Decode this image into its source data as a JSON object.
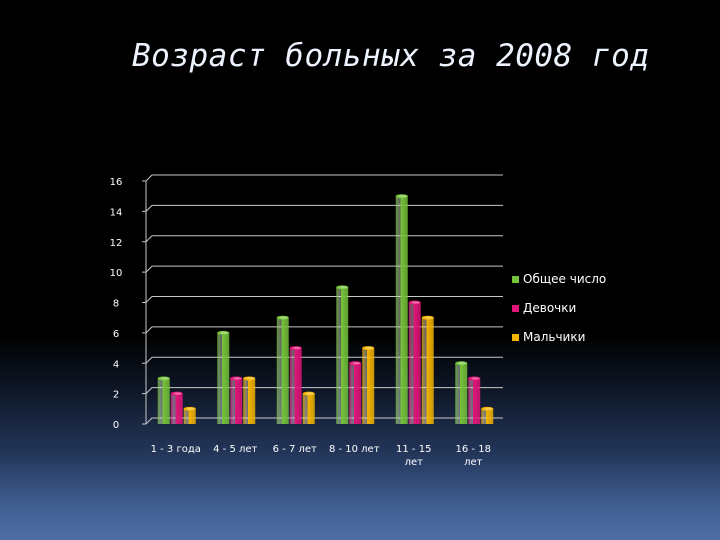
{
  "slide": {
    "title": "Возраст больных за 2008 год"
  },
  "chart_data": {
    "type": "bar",
    "title": "",
    "xlabel": "",
    "ylabel": "",
    "categories": [
      [
        "1 - 3 года"
      ],
      [
        "4 - 5 лет"
      ],
      [
        "6 - 7  лет"
      ],
      [
        "8 - 10 лет"
      ],
      [
        "11 - 15",
        "лет"
      ],
      [
        "16 - 18",
        "лет"
      ]
    ],
    "series": [
      {
        "name": "Общее число",
        "values": [
          3,
          6,
          7,
          9,
          15,
          4
        ],
        "color": "#76c43a"
      },
      {
        "name": "Девочки",
        "values": [
          2,
          3,
          5,
          4,
          8,
          3
        ],
        "color": "#e3157a"
      },
      {
        "name": "Мальчики",
        "values": [
          1,
          3,
          2,
          5,
          7,
          1
        ],
        "color": "#f4b400"
      }
    ],
    "ylim": [
      0,
      16
    ],
    "yticks": [
      "0",
      "2",
      "4",
      "6",
      "8",
      "10",
      "12",
      "14",
      "16"
    ],
    "grid": true,
    "legend_position": "right"
  }
}
